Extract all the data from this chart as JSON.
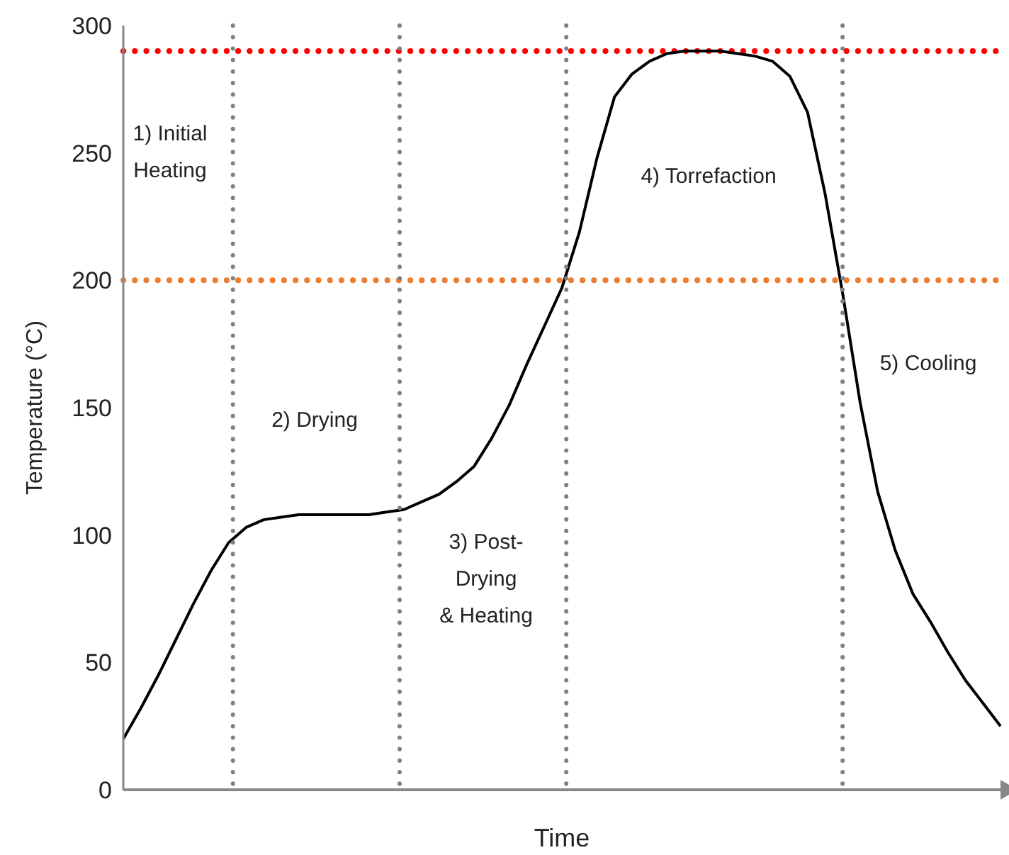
{
  "chart_data": {
    "type": "line",
    "xlabel": "Time",
    "ylabel": "Temperature (°C)",
    "categories": [
      null,
      null,
      null,
      null,
      null,
      null,
      null,
      null,
      null,
      null,
      null,
      null,
      null,
      null,
      null,
      null,
      null,
      null,
      null,
      null,
      null,
      null,
      null,
      null,
      null,
      null,
      null,
      null,
      null,
      null,
      null,
      null,
      null,
      null,
      null,
      null,
      null,
      null,
      null,
      null,
      null,
      null,
      null,
      null,
      null,
      null,
      null,
      null,
      null,
      null,
      null
    ],
    "series": [
      {
        "color": "#000000",
        "values": [
          20,
          32,
          45,
          59,
          73,
          86,
          97,
          103,
          106,
          107,
          108,
          108,
          108,
          108,
          108,
          109,
          110,
          113,
          116,
          121,
          127,
          138,
          151,
          167,
          182,
          197,
          219,
          248,
          272,
          281,
          286,
          289,
          290,
          290,
          290,
          289,
          288,
          286,
          280,
          266,
          234,
          195,
          152,
          117,
          94,
          77,
          66,
          54,
          43,
          34,
          25
        ]
      }
    ],
    "ylim": [
      0,
      300
    ],
    "yticks": [
      0,
      50,
      100,
      150,
      200,
      250,
      300
    ],
    "tick_labels": "y",
    "grid": false,
    "legend": false,
    "marker": "none",
    "line_style": "solid",
    "ref_lines": [
      {
        "axis": "y",
        "value": 290,
        "color": "#ff0000",
        "line_style": "dotted"
      },
      {
        "axis": "y",
        "value": 200,
        "color": "#ed7d31",
        "line_style": "dotted"
      }
    ],
    "annotations": [
      "1) Initial\nHeating",
      "2) Drying",
      "3) Post-\nDrying\n& Heating",
      "4) Torrefaction",
      "5) Cooling"
    ]
  }
}
